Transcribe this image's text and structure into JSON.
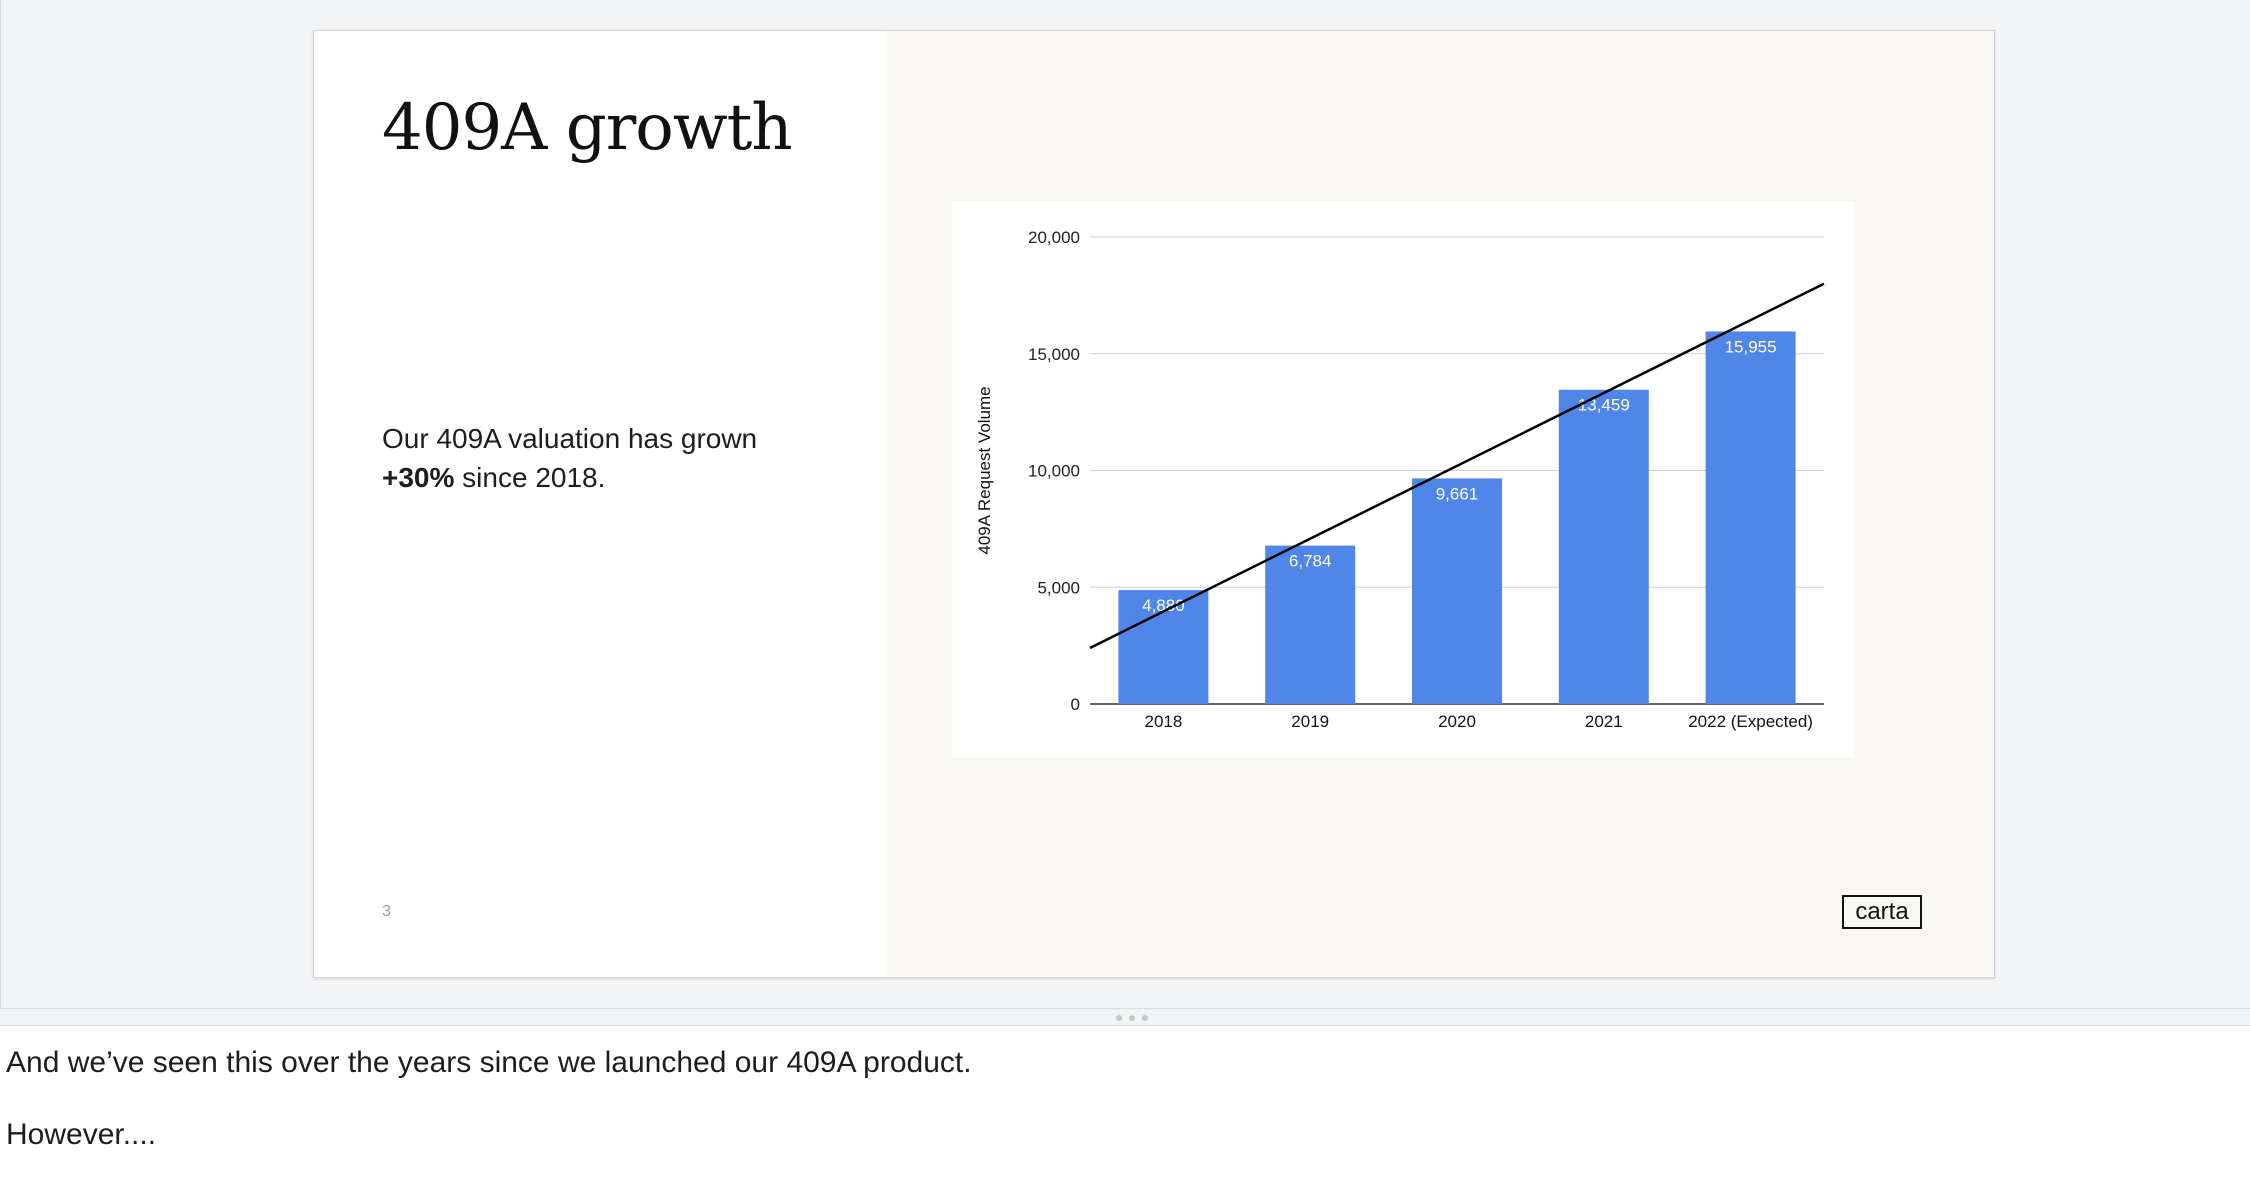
{
  "slide": {
    "title": "409A growth",
    "body_line1": "Our 409A valuation has grown",
    "body_bold": "+30%",
    "body_line2": " since 2018.",
    "number": "3",
    "logo": "carta"
  },
  "chart_data": {
    "type": "bar",
    "categories": [
      "2018",
      "2019",
      "2020",
      "2021",
      "2022 (Expected)"
    ],
    "values": [
      4880,
      6784,
      9661,
      13459,
      15955
    ],
    "data_labels": [
      "4,880",
      "6,784",
      "9,661",
      "13,459",
      "15,955"
    ],
    "ylabel": "409A Request Volume",
    "xlabel": "",
    "ylim": [
      0,
      20000
    ],
    "y_ticks": [
      0,
      5000,
      10000,
      15000,
      20000
    ],
    "y_tick_labels": [
      "0",
      "5,000",
      "10,000",
      "15,000",
      "20,000"
    ],
    "trendline": {
      "start": [
        2018,
        2400
      ],
      "end": [
        2022,
        18000
      ]
    },
    "grid": true,
    "bar_color": "#4f86e8",
    "trend_color": "#000000"
  },
  "speaker_notes": {
    "line1": "And we’ve seen this over the years since we launched our 409A product.",
    "line2": "However...."
  }
}
